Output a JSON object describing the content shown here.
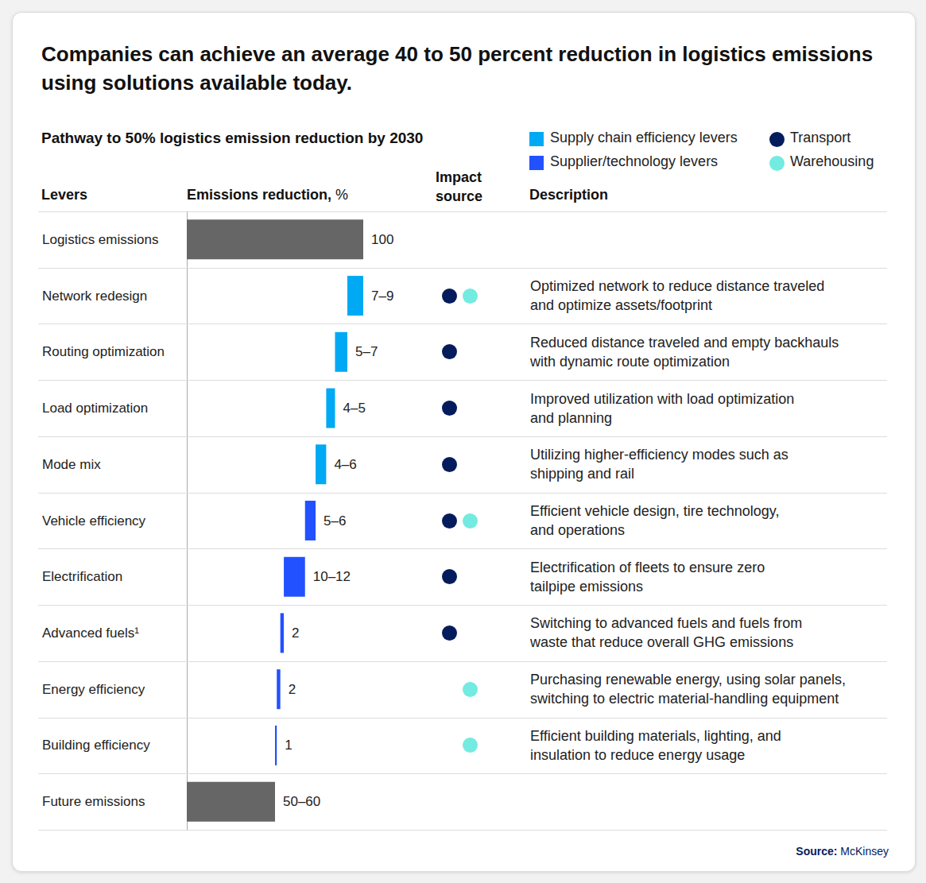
{
  "chart_data": {
    "type": "waterfall",
    "title": "Companies can achieve an average 40 to 50 percent reduction in logistics emissions using solutions available today.",
    "subtitle": "Pathway to 50% logistics emission reduction by 2030",
    "orientation": "horizontal",
    "columns": {
      "levers": "Levers",
      "reduction": "Emissions reduction,",
      "unit": "%",
      "impact": "Impact source",
      "description": "Description"
    },
    "categories": [
      "Logistics emissions",
      "Network redesign",
      "Routing optimization",
      "Load optimization",
      "Mode mix",
      "Vehicle efficiency",
      "Electrification",
      "Advanced fuels¹",
      "Energy efficiency",
      "Building efficiency",
      "Future emissions"
    ],
    "values": [
      100,
      9,
      7,
      5,
      6,
      6,
      12,
      2,
      2,
      1,
      50
    ],
    "lows": [
      100,
      7,
      5,
      4,
      4,
      5,
      10,
      2,
      2,
      1,
      50
    ],
    "value_labels": [
      "100",
      "7–9",
      "5–7",
      "4–5",
      "4–6",
      "5–6",
      "10–12",
      "2",
      "2",
      "1",
      "50–60"
    ],
    "colors": [
      "#666666",
      "#00a9f4",
      "#00a9f4",
      "#00a9f4",
      "#00a9f4",
      "#2251ff",
      "#2251ff",
      "#2251ff",
      "#2251ff",
      "#2251ff",
      "#666666"
    ],
    "data_labels": true,
    "tick_labels": "y",
    "grid": false,
    "xlim": [
      0,
      100
    ],
    "color_key": [
      {
        "label": "Supply chain efficiency levers",
        "color": "#00a9f4"
      },
      {
        "label": "Supplier/technology levers",
        "color": "#2251ff"
      }
    ],
    "impact_sources": [
      {
        "label": "Transport",
        "color": "#051c5c"
      },
      {
        "label": "Warehousing",
        "color": "#73ebe1"
      }
    ],
    "impact": [
      [],
      [
        "Transport",
        "Warehousing"
      ],
      [
        "Transport"
      ],
      [
        "Transport"
      ],
      [
        "Transport"
      ],
      [
        "Transport",
        "Warehousing"
      ],
      [
        "Transport"
      ],
      [
        "Transport"
      ],
      [
        "Warehousing"
      ],
      [
        "Warehousing"
      ],
      []
    ],
    "descriptions": [
      [],
      [
        "Optimized network to reduce distance traveled",
        "and optimize assets/footprint"
      ],
      [
        "Reduced distance traveled and empty backhauls",
        "with dynamic route optimization"
      ],
      [
        "Improved utilization with load optimization",
        "and planning"
      ],
      [
        "Utilizing higher-efficiency modes such as",
        "shipping and rail"
      ],
      [
        "Efficient vehicle design, tire technology,",
        "and operations"
      ],
      [
        "Electrification of fleets to ensure zero",
        "tailpipe emissions"
      ],
      [
        "Switching to advanced fuels and fuels from",
        "waste that reduce overall GHG emissions"
      ],
      [
        "Purchasing renewable energy, using solar panels,",
        "switching to electric material-handling equipment"
      ],
      [
        "Efficient building materials, lighting, and",
        "insulation to reduce energy usage"
      ],
      []
    ],
    "source": {
      "label": "Source:",
      "text": "McKinsey"
    }
  }
}
